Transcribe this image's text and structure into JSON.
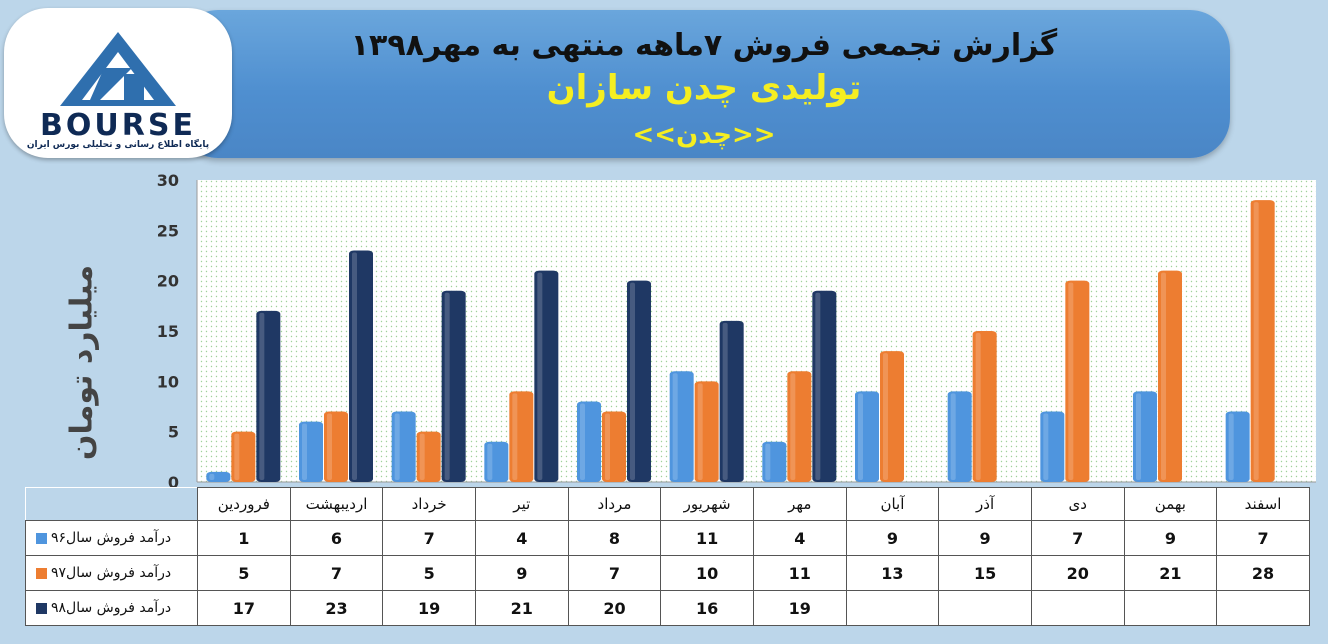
{
  "header": {
    "title": "گزارش تجمعی فروش ۷ماهه منتهی به مهر۱۳۹۸",
    "subtitle": "تولیدی چدن سازان",
    "symbol": "<<چدن>>"
  },
  "logo": {
    "word": "BOURSE",
    "caption": "پایگاه اطلاع رسانی و تحلیلی بورس ایران"
  },
  "chart_data": {
    "type": "bar",
    "title": "تولیدی چدن سازان",
    "ylabel": "میلیارد تومان",
    "ylim": [
      0,
      30
    ],
    "yticks": [
      0,
      5,
      10,
      15,
      20,
      25,
      30
    ],
    "categories": [
      "فروردین",
      "اردیبهشت",
      "خرداد",
      "تیر",
      "مرداد",
      "شهریور",
      "مهر",
      "آبان",
      "آذر",
      "دی",
      "بهمن",
      "اسفند"
    ],
    "series": [
      {
        "name": "درآمد فروش سال۹۶",
        "color": "#4f95de",
        "values": [
          1,
          6,
          7,
          4,
          8,
          11,
          4,
          9,
          9,
          7,
          9,
          7
        ]
      },
      {
        "name": "درآمد فروش سال۹۷",
        "color": "#ed7d31",
        "values": [
          5,
          7,
          5,
          9,
          7,
          10,
          11,
          13,
          15,
          20,
          21,
          28
        ]
      },
      {
        "name": "درآمد فروش  سال۹۸",
        "color": "#1f3864",
        "values": [
          17,
          23,
          19,
          21,
          20,
          16,
          19,
          null,
          null,
          null,
          null,
          null
        ]
      }
    ],
    "grid": false,
    "legend": "table-left"
  }
}
